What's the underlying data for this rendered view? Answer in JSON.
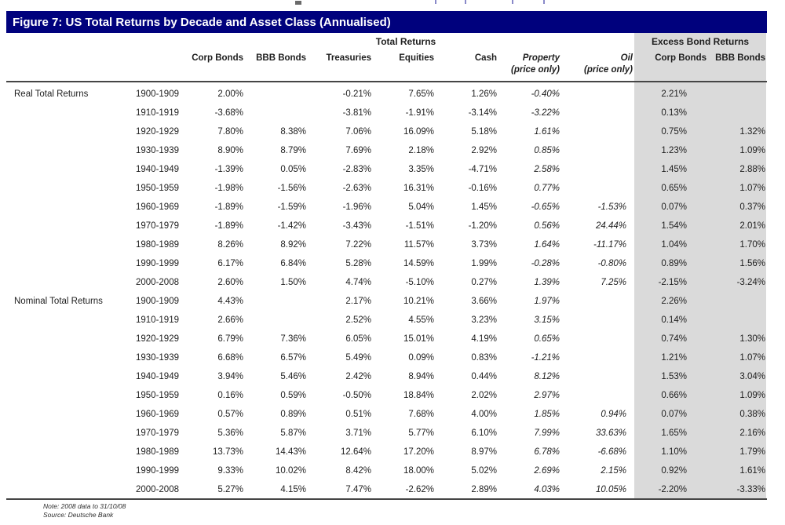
{
  "figure": {
    "title": "Figure 7: US Total Returns by Decade and Asset Class (Annualised)",
    "group_headers": {
      "total_returns": "Total Returns",
      "excess_bond_returns": "Excess Bond Returns"
    },
    "columns": [
      {
        "key": "corp",
        "label": "Corp Bonds",
        "sub": "",
        "italic": false
      },
      {
        "key": "bbb",
        "label": "BBB Bonds",
        "sub": "",
        "italic": false
      },
      {
        "key": "treasuries",
        "label": "Treasuries",
        "sub": "",
        "italic": false
      },
      {
        "key": "equities",
        "label": "Equities",
        "sub": "",
        "italic": false
      },
      {
        "key": "cash",
        "label": "Cash",
        "sub": "",
        "italic": false
      },
      {
        "key": "property",
        "label": "Property",
        "sub": "(price only)",
        "italic": true
      },
      {
        "key": "oil",
        "label": "Oil",
        "sub": "(price only)",
        "italic": true
      },
      {
        "key": "x_corp",
        "label": "Corp Bonds",
        "sub": "",
        "italic": false
      },
      {
        "key": "x_bbb",
        "label": "BBB Bonds",
        "sub": "",
        "italic": false
      }
    ],
    "sections": [
      {
        "label": "Real Total Returns",
        "rows": [
          {
            "decade": "1900-1909",
            "values": [
              "2.00%",
              "",
              "-0.21%",
              "7.65%",
              "1.26%",
              "-0.40%",
              "",
              "2.21%",
              ""
            ]
          },
          {
            "decade": "1910-1919",
            "values": [
              "-3.68%",
              "",
              "-3.81%",
              "-1.91%",
              "-3.14%",
              "-3.22%",
              "",
              "0.13%",
              ""
            ]
          },
          {
            "decade": "1920-1929",
            "values": [
              "7.80%",
              "8.38%",
              "7.06%",
              "16.09%",
              "5.18%",
              "1.61%",
              "",
              "0.75%",
              "1.32%"
            ]
          },
          {
            "decade": "1930-1939",
            "values": [
              "8.90%",
              "8.79%",
              "7.69%",
              "2.18%",
              "2.92%",
              "0.85%",
              "",
              "1.23%",
              "1.09%"
            ]
          },
          {
            "decade": "1940-1949",
            "values": [
              "-1.39%",
              "0.05%",
              "-2.83%",
              "3.35%",
              "-4.71%",
              "2.58%",
              "",
              "1.45%",
              "2.88%"
            ]
          },
          {
            "decade": "1950-1959",
            "values": [
              "-1.98%",
              "-1.56%",
              "-2.63%",
              "16.31%",
              "-0.16%",
              "0.77%",
              "",
              "0.65%",
              "1.07%"
            ]
          },
          {
            "decade": "1960-1969",
            "values": [
              "-1.89%",
              "-1.59%",
              "-1.96%",
              "5.04%",
              "1.45%",
              "-0.65%",
              "-1.53%",
              "0.07%",
              "0.37%"
            ]
          },
          {
            "decade": "1970-1979",
            "values": [
              "-1.89%",
              "-1.42%",
              "-3.43%",
              "-1.51%",
              "-1.20%",
              "0.56%",
              "24.44%",
              "1.54%",
              "2.01%"
            ]
          },
          {
            "decade": "1980-1989",
            "values": [
              "8.26%",
              "8.92%",
              "7.22%",
              "11.57%",
              "3.73%",
              "1.64%",
              "-11.17%",
              "1.04%",
              "1.70%"
            ]
          },
          {
            "decade": "1990-1999",
            "values": [
              "6.17%",
              "6.84%",
              "5.28%",
              "14.59%",
              "1.99%",
              "-0.28%",
              "-0.80%",
              "0.89%",
              "1.56%"
            ]
          },
          {
            "decade": "2000-2008",
            "values": [
              "2.60%",
              "1.50%",
              "4.74%",
              "-5.10%",
              "0.27%",
              "1.39%",
              "7.25%",
              "-2.15%",
              "-3.24%"
            ]
          }
        ]
      },
      {
        "label": "Nominal Total Returns",
        "rows": [
          {
            "decade": "1900-1909",
            "values": [
              "4.43%",
              "",
              "2.17%",
              "10.21%",
              "3.66%",
              "1.97%",
              "",
              "2.26%",
              ""
            ]
          },
          {
            "decade": "1910-1919",
            "values": [
              "2.66%",
              "",
              "2.52%",
              "4.55%",
              "3.23%",
              "3.15%",
              "",
              "0.14%",
              ""
            ]
          },
          {
            "decade": "1920-1929",
            "values": [
              "6.79%",
              "7.36%",
              "6.05%",
              "15.01%",
              "4.19%",
              "0.65%",
              "",
              "0.74%",
              "1.30%"
            ]
          },
          {
            "decade": "1930-1939",
            "values": [
              "6.68%",
              "6.57%",
              "5.49%",
              "0.09%",
              "0.83%",
              "-1.21%",
              "",
              "1.21%",
              "1.07%"
            ]
          },
          {
            "decade": "1940-1949",
            "values": [
              "3.94%",
              "5.46%",
              "2.42%",
              "8.94%",
              "0.44%",
              "8.12%",
              "",
              "1.53%",
              "3.04%"
            ]
          },
          {
            "decade": "1950-1959",
            "values": [
              "0.16%",
              "0.59%",
              "-0.50%",
              "18.84%",
              "2.02%",
              "2.97%",
              "",
              "0.66%",
              "1.09%"
            ]
          },
          {
            "decade": "1960-1969",
            "values": [
              "0.57%",
              "0.89%",
              "0.51%",
              "7.68%",
              "4.00%",
              "1.85%",
              "0.94%",
              "0.07%",
              "0.38%"
            ]
          },
          {
            "decade": "1970-1979",
            "values": [
              "5.36%",
              "5.87%",
              "3.71%",
              "5.77%",
              "6.10%",
              "7.99%",
              "33.63%",
              "1.65%",
              "2.16%"
            ]
          },
          {
            "decade": "1980-1989",
            "values": [
              "13.73%",
              "14.43%",
              "12.64%",
              "17.20%",
              "8.97%",
              "6.78%",
              "-6.68%",
              "1.10%",
              "1.79%"
            ]
          },
          {
            "decade": "1990-1999",
            "values": [
              "9.33%",
              "10.02%",
              "8.42%",
              "18.00%",
              "5.02%",
              "2.69%",
              "2.15%",
              "0.92%",
              "1.61%"
            ]
          },
          {
            "decade": "2000-2008",
            "values": [
              "5.27%",
              "4.15%",
              "7.47%",
              "-2.62%",
              "2.89%",
              "4.03%",
              "10.05%",
              "-2.20%",
              "-3.33%"
            ]
          }
        ]
      }
    ],
    "footer": {
      "note": "Note: 2008 data to 31/10/08",
      "source": "Source: Deutsche Bank"
    },
    "colors": {
      "title_bar_bg": "#00017d",
      "title_text": "#ffffff",
      "excess_columns_bg": "#dadada",
      "rule": "#454545",
      "body_text": "#1e1e1e"
    }
  }
}
